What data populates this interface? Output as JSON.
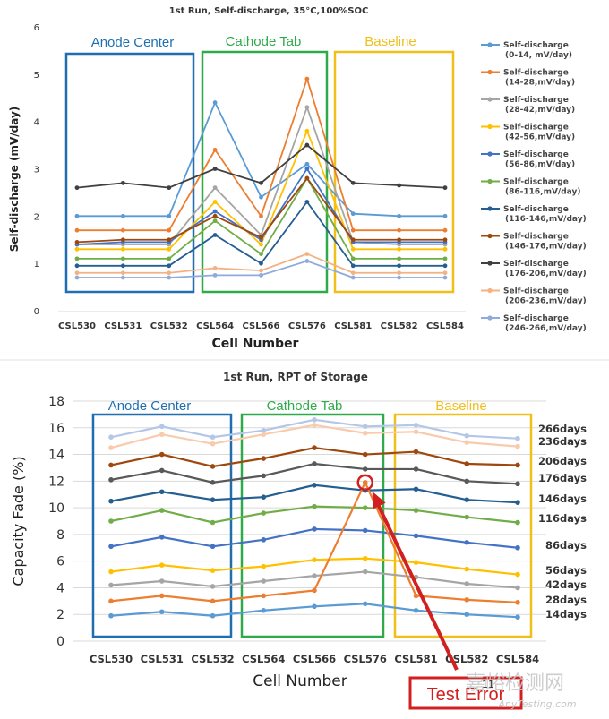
{
  "chart_data": [
    {
      "type": "line",
      "title": "1st Run, Self-discharge, 35°C,100%SOC",
      "xlabel": "Cell Number",
      "ylabel": "Self-discharge (mV/day)",
      "ylim": [
        0,
        6
      ],
      "yticks": [
        0,
        1,
        2,
        3,
        4,
        5,
        6
      ],
      "categories": [
        "CSL530",
        "CSL531",
        "CSL532",
        "CSL564",
        "CSL566",
        "CSL576",
        "CSL581",
        "CSL582",
        "CSL584"
      ],
      "legend_position": "right",
      "regions": [
        {
          "label": "Anode Center",
          "color": "#1f6fb0"
        },
        {
          "label": "Cathode Tab",
          "color": "#2eaa4a"
        },
        {
          "label": "Baseline",
          "color": "#f0bf1a"
        }
      ],
      "series": [
        {
          "name": "Self-discharge (0-14, mV/day)",
          "color": "#5b9bd5",
          "values": [
            2.0,
            2.0,
            2.0,
            4.4,
            2.4,
            3.1,
            2.05,
            2.0,
            2.0
          ]
        },
        {
          "name": "Self-discharge (14-28,mV/day)",
          "color": "#ed7d31",
          "values": [
            1.7,
            1.7,
            1.7,
            3.4,
            2.0,
            4.9,
            1.7,
            1.7,
            1.7
          ]
        },
        {
          "name": "Self-discharge (28-42,mV/day)",
          "color": "#a5a5a5",
          "values": [
            1.4,
            1.4,
            1.4,
            2.6,
            1.6,
            4.3,
            1.45,
            1.4,
            1.4
          ]
        },
        {
          "name": "Self-discharge (42-56,mV/day)",
          "color": "#ffc000",
          "values": [
            1.3,
            1.3,
            1.3,
            2.3,
            1.4,
            3.8,
            1.3,
            1.3,
            1.3
          ]
        },
        {
          "name": "Self-discharge (56-86,mV/day)",
          "color": "#4472c4",
          "values": [
            1.4,
            1.45,
            1.45,
            2.1,
            1.5,
            3.0,
            1.45,
            1.45,
            1.45
          ]
        },
        {
          "name": "Self-discharge (86-116,mV/day)",
          "color": "#70ad47",
          "values": [
            1.1,
            1.1,
            1.1,
            1.9,
            1.2,
            2.8,
            1.1,
            1.1,
            1.1
          ]
        },
        {
          "name": "Self-discharge (116-146,mV/day)",
          "color": "#255e91",
          "values": [
            0.95,
            0.95,
            0.95,
            1.6,
            1.0,
            2.3,
            0.95,
            0.95,
            0.95
          ]
        },
        {
          "name": "Self-discharge (146-176,mV/day)",
          "color": "#9e480e",
          "values": [
            1.45,
            1.5,
            1.5,
            2.0,
            1.55,
            2.8,
            1.5,
            1.5,
            1.5
          ]
        },
        {
          "name": "Self-discharge (176-206,mV/day)",
          "color": "#404040",
          "values": [
            2.6,
            2.7,
            2.6,
            3.0,
            2.7,
            3.5,
            2.7,
            2.65,
            2.6
          ]
        },
        {
          "name": "Self-discharge (206-236,mV/day)",
          "color": "#f4b183",
          "values": [
            0.8,
            0.8,
            0.8,
            0.9,
            0.85,
            1.2,
            0.8,
            0.8,
            0.8
          ]
        },
        {
          "name": "Self-discharge (246-266,mV/day)",
          "color": "#8faadc",
          "values": [
            0.7,
            0.7,
            0.7,
            0.75,
            0.75,
            1.05,
            0.7,
            0.7,
            0.7
          ]
        }
      ]
    },
    {
      "type": "line",
      "title": "1st Run, RPT of Storage",
      "xlabel": "Cell Number",
      "ylabel": "Capacity Fade (%)",
      "ylim": [
        0,
        18
      ],
      "yticks": [
        0,
        2,
        4,
        6,
        8,
        10,
        12,
        14,
        16,
        18
      ],
      "grid": true,
      "categories": [
        "CSL530",
        "CSL531",
        "CSL532",
        "CSL564",
        "CSL566",
        "CSL576",
        "CSL581",
        "CSL582",
        "CSL584"
      ],
      "regions": [
        {
          "label": "Anode Center",
          "color": "#1f6fb0"
        },
        {
          "label": "Cathode Tab",
          "color": "#2eaa4a"
        },
        {
          "label": "Baseline",
          "color": "#f0bf1a"
        }
      ],
      "annotation": {
        "label": "Test Error",
        "category": "CSL576",
        "value": 11.9
      },
      "series": [
        {
          "name": "266days",
          "color": "#b4c7e7",
          "values": [
            15.3,
            16.1,
            15.3,
            15.8,
            16.6,
            16.1,
            16.2,
            15.4,
            15.2
          ]
        },
        {
          "name": "236days",
          "color": "#f8cbad",
          "values": [
            14.5,
            15.5,
            14.8,
            15.5,
            16.2,
            15.6,
            15.7,
            14.9,
            14.6
          ]
        },
        {
          "name": "206days",
          "color": "#9e480e",
          "values": [
            13.2,
            14.0,
            13.1,
            13.7,
            14.5,
            14.0,
            14.2,
            13.3,
            13.2
          ]
        },
        {
          "name": "176days",
          "color": "#595959",
          "values": [
            12.1,
            12.8,
            11.9,
            12.4,
            13.3,
            12.9,
            12.9,
            12.0,
            11.8
          ]
        },
        {
          "name": "146days",
          "color": "#255e91",
          "values": [
            10.5,
            11.2,
            10.6,
            10.8,
            11.7,
            11.3,
            11.4,
            10.6,
            10.4
          ]
        },
        {
          "name": "116days",
          "color": "#70ad47",
          "values": [
            9.0,
            9.8,
            8.9,
            9.6,
            10.1,
            10.0,
            9.8,
            9.3,
            8.9
          ]
        },
        {
          "name": "86days",
          "color": "#4472c4",
          "values": [
            7.1,
            7.8,
            7.1,
            7.6,
            8.4,
            8.3,
            7.9,
            7.4,
            7.0
          ]
        },
        {
          "name": "56days",
          "color": "#ffc000",
          "values": [
            5.2,
            5.7,
            5.3,
            5.6,
            6.1,
            6.2,
            5.9,
            5.4,
            5.0
          ]
        },
        {
          "name": "42days",
          "color": "#a5a5a5",
          "values": [
            4.2,
            4.5,
            4.1,
            4.5,
            4.9,
            5.2,
            4.8,
            4.3,
            4.0
          ]
        },
        {
          "name": "28days",
          "color": "#ed7d31",
          "values": [
            3.0,
            3.4,
            3.0,
            3.4,
            3.8,
            11.9,
            3.4,
            3.1,
            2.9
          ]
        },
        {
          "name": "14days",
          "color": "#5b9bd5",
          "values": [
            1.9,
            2.2,
            1.9,
            2.3,
            2.6,
            2.8,
            2.3,
            2.0,
            1.8
          ]
        }
      ]
    }
  ],
  "watermark": {
    "cn": "嘉峪检测网",
    "en": "AnyTesting.com"
  },
  "page_footer": {
    "number": "11"
  }
}
